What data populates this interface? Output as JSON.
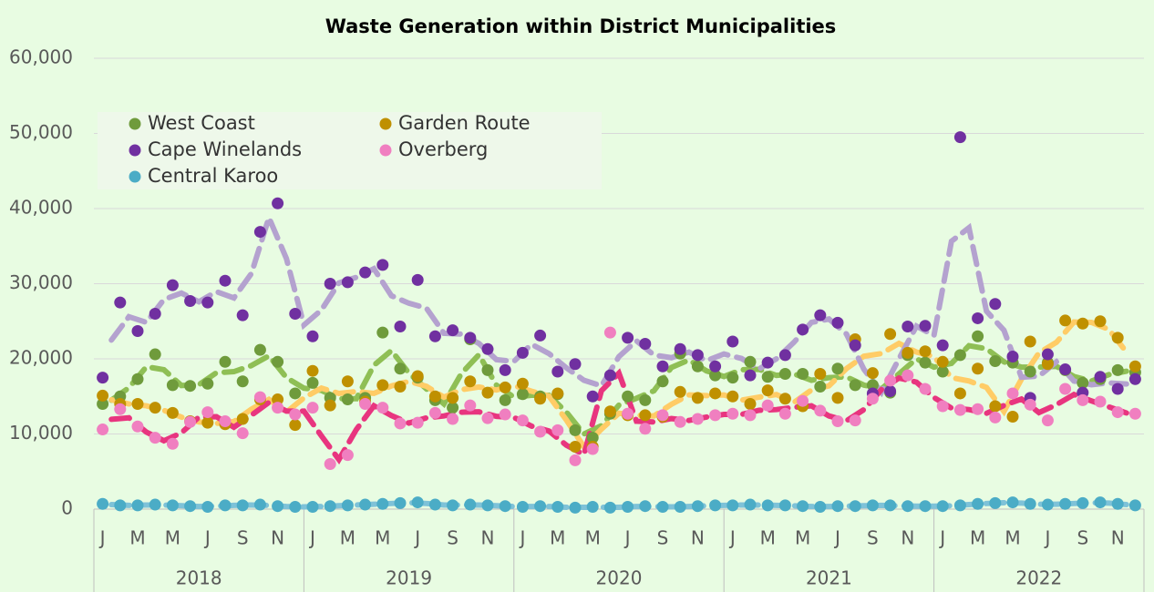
{
  "chart_data": {
    "type": "scatter",
    "title": "Waste Generation within District Municipalities",
    "categories": [
      "J",
      null,
      "M",
      null,
      "M",
      null,
      "J",
      null,
      "S",
      null,
      "N",
      null,
      "J",
      null,
      "M",
      null,
      "M",
      null,
      "J",
      null,
      "S",
      null,
      "N",
      null,
      "J",
      null,
      "M",
      null,
      "M",
      null,
      "J",
      null,
      "S",
      null,
      "N",
      null,
      "J",
      null,
      "M",
      null,
      "M",
      null,
      "J",
      null,
      "S",
      null,
      "N",
      null,
      "J",
      null,
      "M",
      null,
      "M",
      null,
      "J",
      null,
      "S",
      null,
      "N",
      null
    ],
    "x_groups": [
      "2018",
      "2019",
      "2020",
      "2021",
      "2022"
    ],
    "ylim": [
      0,
      60000
    ],
    "yticks": [
      0,
      {
        "value": 10000,
        "label": "10,000"
      },
      {
        "value": 20000,
        "label": "20,000"
      },
      {
        "value": 30000,
        "label": "30,000"
      },
      {
        "value": 40000,
        "label": "40,000"
      },
      {
        "value": 50000,
        "label": "50,000"
      },
      {
        "value": 60000,
        "label": "60,000"
      }
    ],
    "grid": true,
    "legend": "top-left",
    "trendline": {
      "type": "moving_average",
      "period": 2
    },
    "series": [
      {
        "name": "West Coast",
        "color": "#6f9b3c",
        "trend_color": "#8fbf55",
        "values": [
          14000,
          15000,
          17300,
          20600,
          16500,
          16400,
          16700,
          19600,
          17000,
          21200,
          19600,
          15400,
          16800,
          14800,
          14600,
          14800,
          23500,
          18700,
          17500,
          14500,
          13500,
          22600,
          18500,
          14500,
          15300,
          15000,
          15300,
          10500,
          9500,
          12700,
          15000,
          14500,
          17000,
          20700,
          19000,
          17800,
          17500,
          19600,
          17600,
          18000,
          18000,
          16300,
          18700,
          16500,
          16500,
          15500,
          20500,
          19500,
          18300,
          20500,
          23000,
          19700,
          19500,
          18300,
          19500,
          18500,
          16800,
          17300,
          18500,
          18200
        ]
      },
      {
        "name": "Garden Route",
        "color": "#bf9000",
        "trend_color": "#ffcc66",
        "values": [
          15100,
          14000,
          14000,
          13500,
          12800,
          11700,
          11500,
          11300,
          12000,
          14600,
          14600,
          11200,
          18400,
          13800,
          17000,
          14300,
          16500,
          16300,
          17700,
          15000,
          14800,
          17000,
          15500,
          16200,
          16700,
          14700,
          15400,
          8300,
          8300,
          13000,
          12500,
          12500,
          12300,
          15600,
          14800,
          15400,
          15000,
          14000,
          15800,
          14700,
          13700,
          18000,
          14800,
          22600,
          18100,
          23300,
          20800,
          21000,
          19600,
          15400,
          18700,
          13700,
          12300,
          22300,
          19300,
          25100,
          24700,
          25000,
          22800,
          19000
        ]
      },
      {
        "name": "Cape Winelands",
        "color": "#7030a0",
        "trend_color": "#b4a2cf",
        "values": [
          17500,
          27500,
          23700,
          26000,
          29800,
          27700,
          27500,
          30400,
          25800,
          36900,
          40700,
          26000,
          23000,
          30000,
          30200,
          31500,
          32500,
          24300,
          30500,
          23000,
          23800,
          22800,
          21300,
          18500,
          20800,
          23100,
          18300,
          19300,
          15000,
          17800,
          22800,
          22000,
          19000,
          21300,
          20500,
          19000,
          22300,
          17800,
          19500,
          20500,
          23900,
          25800,
          24800,
          21800,
          15400,
          15700,
          24300,
          24400,
          21800,
          49500,
          25400,
          27300,
          20300,
          14800,
          20600,
          18600,
          15500,
          17600,
          16000,
          17300
        ]
      },
      {
        "name": "Overberg",
        "color": "#f07fc0",
        "trend_color": "#e8357f",
        "values": [
          10600,
          13300,
          11000,
          9500,
          8700,
          11600,
          12900,
          11700,
          10100,
          14900,
          13500,
          12600,
          13500,
          6000,
          7200,
          14000,
          13500,
          11400,
          11500,
          12800,
          12000,
          13800,
          12100,
          12600,
          11800,
          10300,
          10500,
          6500,
          8000,
          23500,
          12700,
          10700,
          12500,
          11600,
          12000,
          12500,
          12700,
          12500,
          13800,
          12700,
          14400,
          13100,
          11700,
          11800,
          14700,
          17100,
          17800,
          16000,
          13700,
          13200,
          13300,
          12200,
          15400,
          13900,
          11800,
          16000,
          14500,
          14300,
          12900,
          12700
        ]
      },
      {
        "name": "Central Karoo",
        "color": "#4bacc6",
        "trend_color": "#7ec2d8",
        "values": [
          700,
          500,
          500,
          600,
          500,
          400,
          300,
          500,
          500,
          600,
          400,
          300,
          300,
          400,
          500,
          600,
          700,
          800,
          900,
          600,
          500,
          600,
          500,
          400,
          300,
          400,
          300,
          200,
          300,
          200,
          300,
          400,
          300,
          300,
          400,
          500,
          500,
          600,
          500,
          500,
          400,
          300,
          400,
          400,
          500,
          500,
          400,
          400,
          400,
          500,
          700,
          800,
          900,
          700,
          600,
          700,
          800,
          900,
          700,
          500
        ]
      }
    ]
  }
}
